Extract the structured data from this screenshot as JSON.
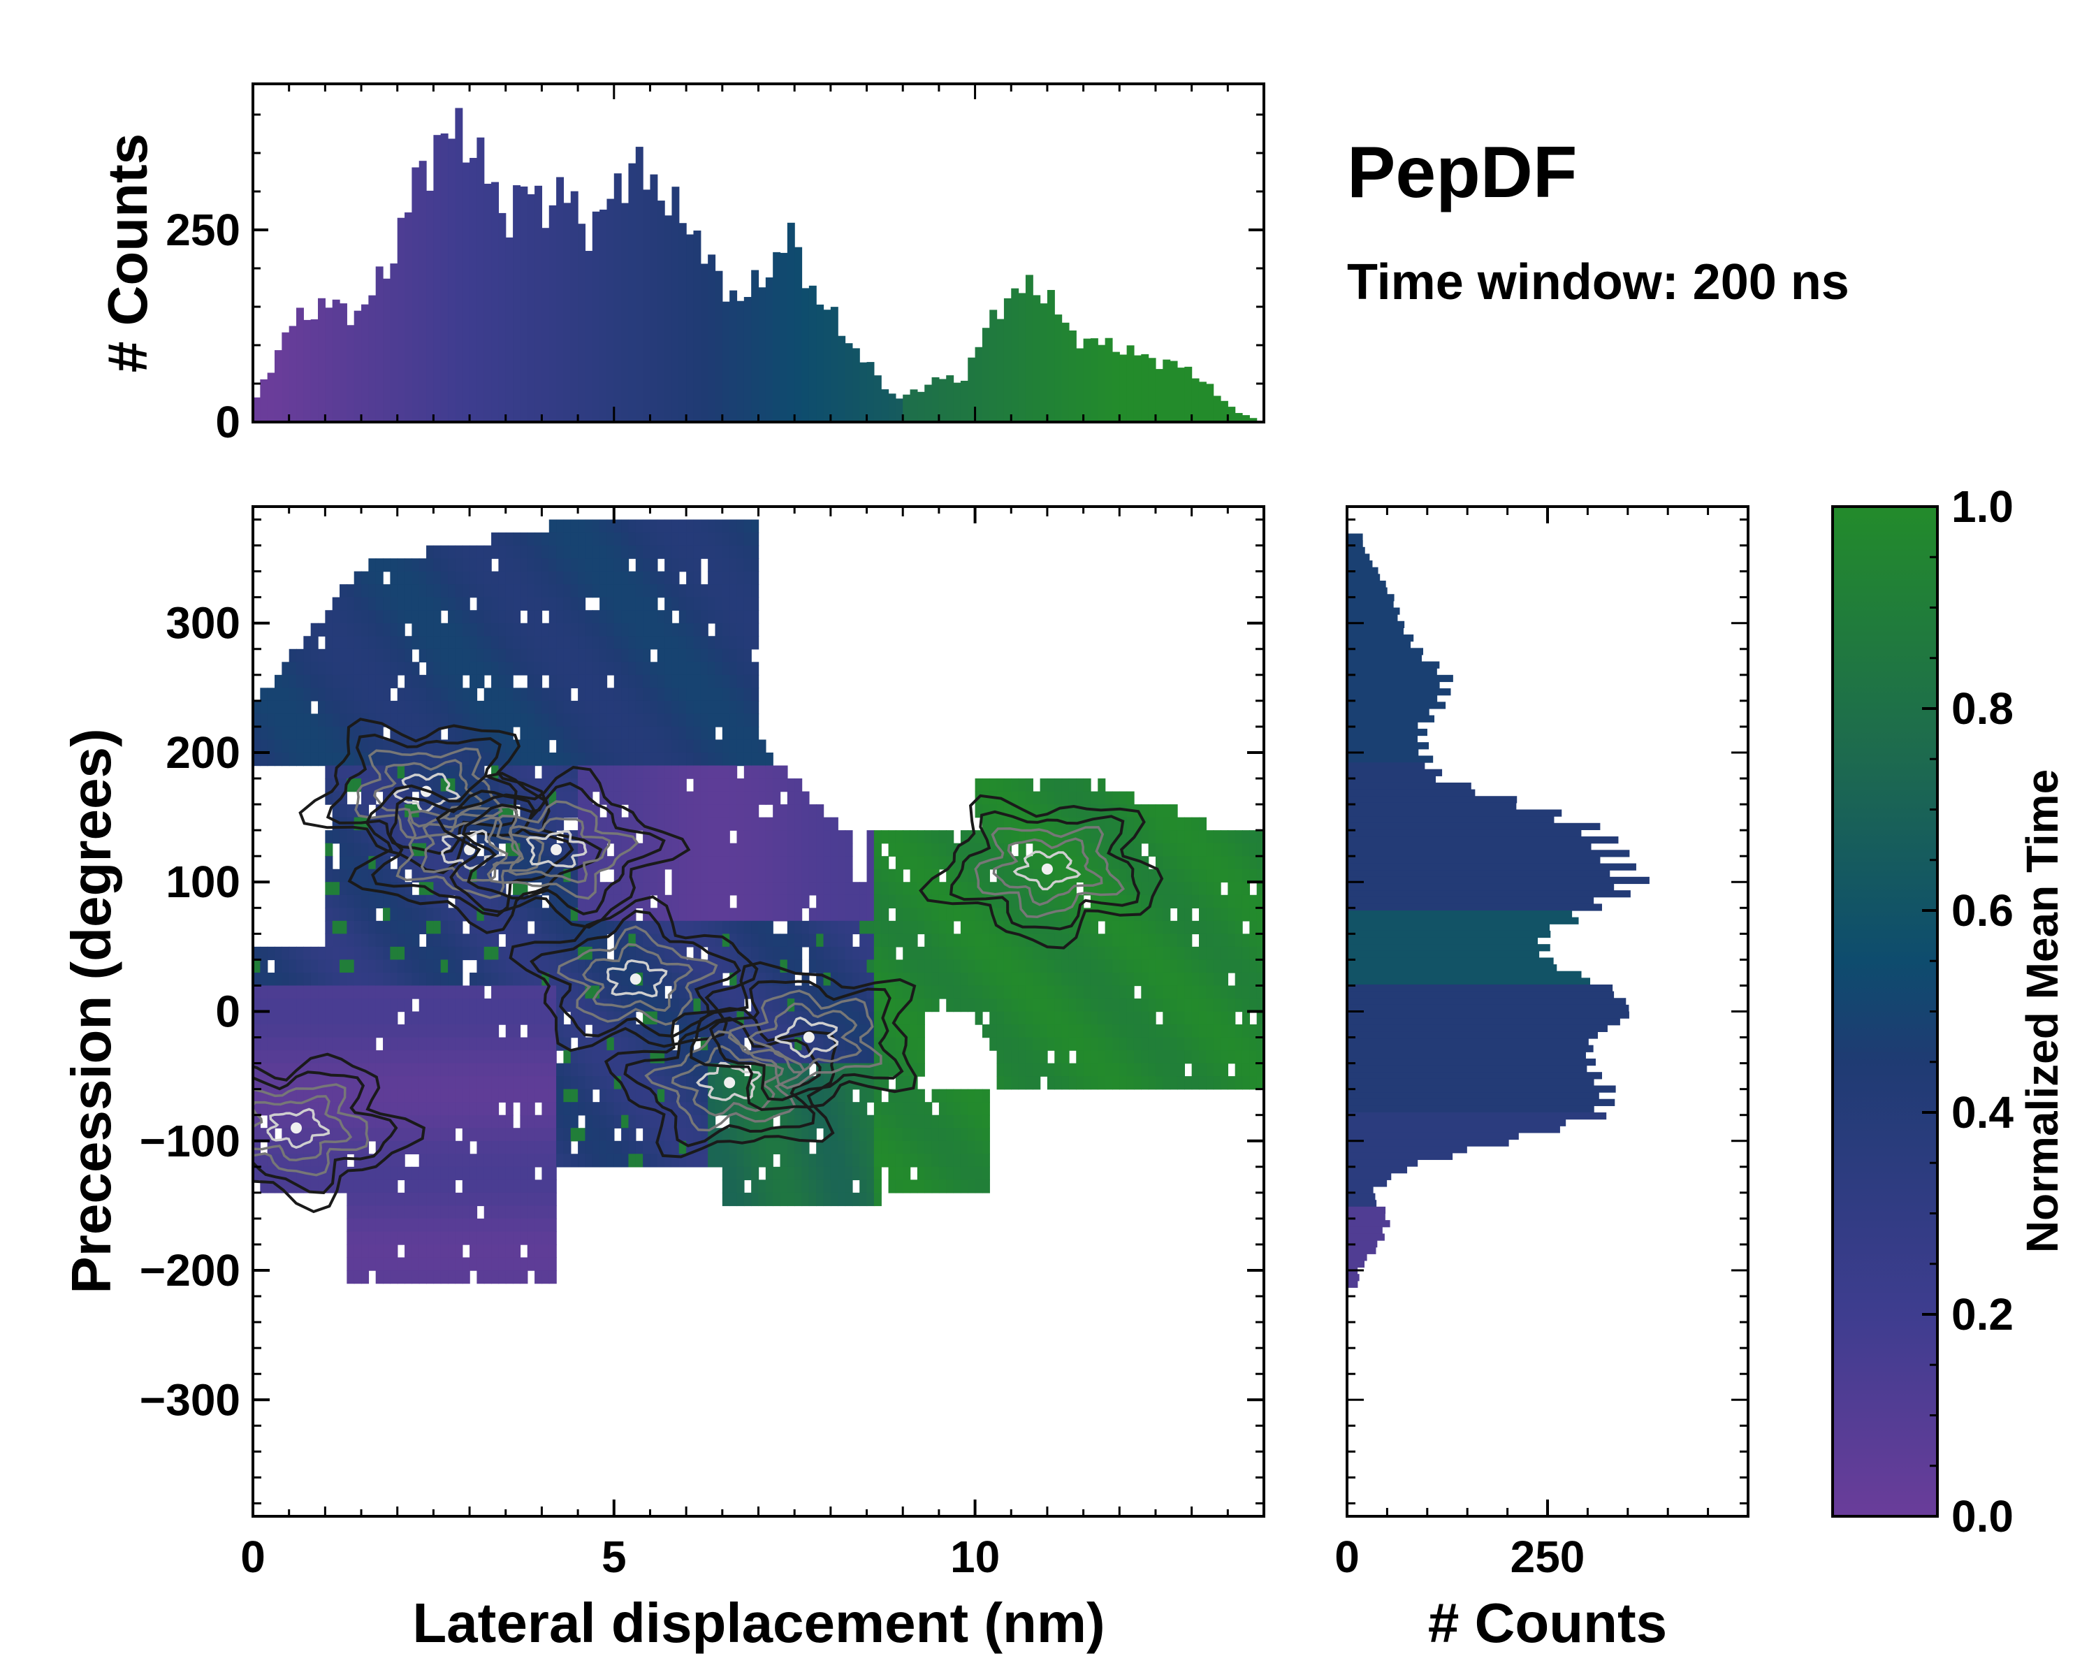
{
  "figure": {
    "title": "PepDF",
    "subtitle": "Time window: 200 ns"
  },
  "colors": {
    "low": "#6a3d9a",
    "mid": "#1f3b73",
    "midhigh": "#0e4c6e",
    "high": "#238b2b",
    "contour_dark": "#1a1a1a",
    "contour_light": "#9a9a9a"
  },
  "chart_data": [
    {
      "id": "top_histogram",
      "type": "bar",
      "title": "",
      "xlabel": "",
      "ylabel": "# Counts",
      "xlim": [
        0,
        14
      ],
      "ylim": [
        0,
        440
      ],
      "yticks": [
        0,
        250
      ],
      "x": [
        0.0,
        0.5,
        1.0,
        1.5,
        2.0,
        2.3,
        2.6,
        2.9,
        3.2,
        3.5,
        3.8,
        4.1,
        4.4,
        4.7,
        5.0,
        5.3,
        5.6,
        5.9,
        6.2,
        6.5,
        6.8,
        7.1,
        7.4,
        7.7,
        8.0,
        8.3,
        8.6,
        8.9,
        9.2,
        9.5,
        9.8,
        10.1,
        10.4,
        10.7,
        11.0,
        11.3,
        11.6,
        11.9,
        12.2,
        12.5,
        12.8,
        13.1,
        13.4,
        13.7,
        14.0
      ],
      "values": [
        20,
        125,
        155,
        140,
        230,
        330,
        360,
        385,
        330,
        265,
        305,
        280,
        300,
        235,
        310,
        330,
        310,
        265,
        240,
        170,
        165,
        185,
        250,
        180,
        140,
        100,
        65,
        30,
        40,
        60,
        50,
        110,
        160,
        175,
        170,
        115,
        105,
        100,
        90,
        80,
        75,
        60,
        30,
        10,
        0
      ],
      "color_by": "Normalized Mean Time"
    },
    {
      "id": "joint_heatmap",
      "type": "heatmap",
      "title": "",
      "xlabel": "Lateral displacement (nm)",
      "ylabel": "Precession (degrees)",
      "xlim": [
        0,
        14
      ],
      "ylim": [
        -390,
        390
      ],
      "xticks": [
        0,
        5,
        10
      ],
      "yticks": [
        -300,
        -200,
        -100,
        0,
        100,
        200,
        300
      ],
      "regions": [
        {
          "name": "upper-left cluster",
          "x_range": [
            0,
            7
          ],
          "y_range": [
            190,
            380
          ],
          "mean_time": 0.45
        },
        {
          "name": "upper-middle purple",
          "x_range": [
            4.5,
            8.3
          ],
          "y_range": [
            90,
            240
          ],
          "mean_time": 0.12
        },
        {
          "name": "lower-left purple",
          "x_range": [
            0,
            4
          ],
          "y_range": [
            -210,
            0
          ],
          "mean_time": 0.1
        },
        {
          "name": "central blue band",
          "x_range": [
            2,
            9
          ],
          "y_range": [
            -120,
            100
          ],
          "mean_time": 0.4
        },
        {
          "name": "right green cluster",
          "x_range": [
            8.5,
            14
          ],
          "y_range": [
            -120,
            180
          ],
          "mean_time": 0.95
        }
      ],
      "contour_peaks": [
        {
          "x": 2.4,
          "y": 170
        },
        {
          "x": 3.0,
          "y": 125
        },
        {
          "x": 4.2,
          "y": 125
        },
        {
          "x": 5.3,
          "y": 25
        },
        {
          "x": 6.6,
          "y": -55
        },
        {
          "x": 7.7,
          "y": -20
        },
        {
          "x": 11.0,
          "y": 110
        },
        {
          "x": 0.6,
          "y": -90
        }
      ]
    },
    {
      "id": "right_histogram",
      "type": "bar",
      "orientation": "horizontal",
      "xlabel": "# Counts",
      "xlim": [
        0,
        500
      ],
      "xticks": [
        0,
        250
      ],
      "ylim": [
        -390,
        390
      ],
      "y": [
        -200,
        -180,
        -160,
        -140,
        -120,
        -100,
        -80,
        -60,
        -40,
        -20,
        0,
        20,
        40,
        60,
        80,
        100,
        120,
        140,
        160,
        180,
        200,
        220,
        240,
        260,
        280,
        300,
        320,
        340,
        360
      ],
      "values": [
        15,
        40,
        50,
        30,
        80,
        200,
        300,
        330,
        320,
        300,
        340,
        330,
        260,
        240,
        290,
        370,
        350,
        300,
        210,
        120,
        100,
        90,
        115,
        130,
        90,
        65,
        55,
        40,
        20
      ],
      "color_by": "Normalized Mean Time"
    }
  ],
  "colorbar": {
    "label": "Normalized Mean Time",
    "min": 0.0,
    "max": 1.0,
    "ticks": [
      "0.0",
      "0.2",
      "0.4",
      "0.6",
      "0.8",
      "1.0"
    ]
  }
}
